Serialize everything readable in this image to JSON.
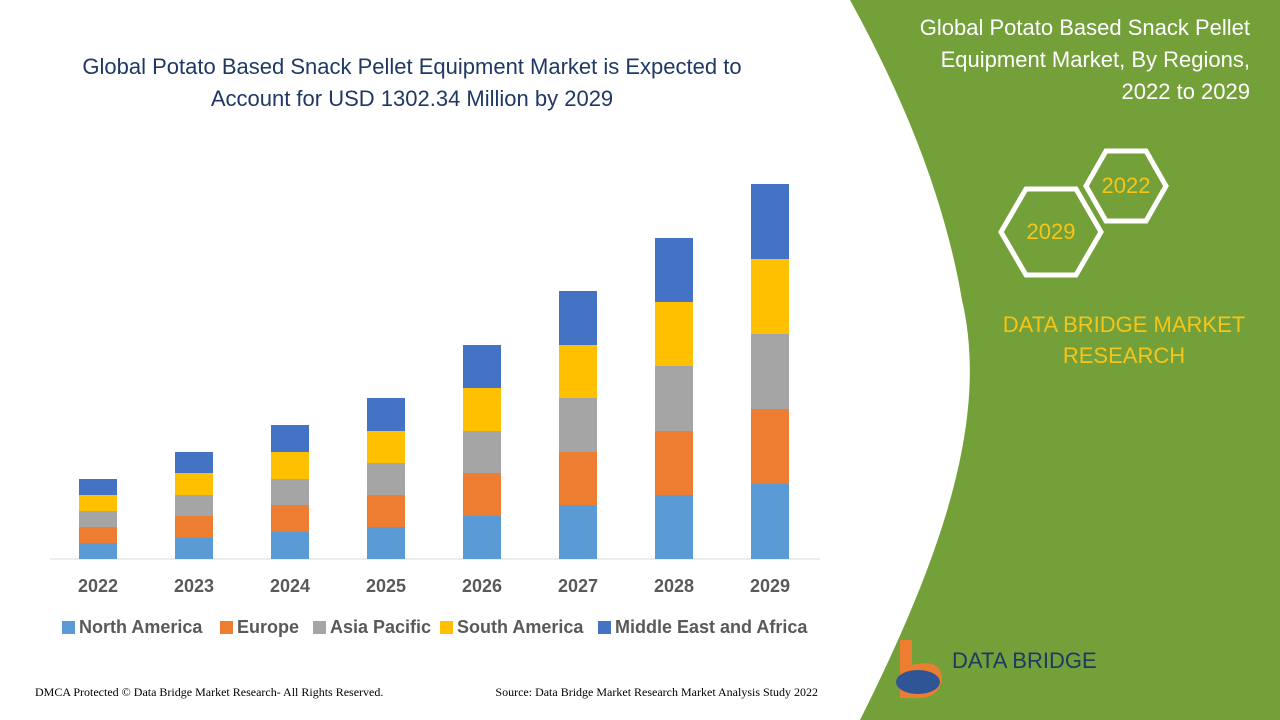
{
  "chart_data": {
    "type": "stacked-bar",
    "title": "Global Potato Based Snack Pellet Equipment Market is Expected to Account for USD 1302.34 Million by 2029",
    "categories": [
      "2022",
      "2023",
      "2024",
      "2025",
      "2026",
      "2027",
      "2028",
      "2029"
    ],
    "series": [
      {
        "name": "North America",
        "color": "#5b9bd5",
        "values": [
          16,
          21,
          27,
          32,
          43,
          54,
          64,
          75
        ]
      },
      {
        "name": "Europe",
        "color": "#ed7d31",
        "values": [
          16,
          22,
          27,
          32,
          43,
          53,
          64,
          75
        ]
      },
      {
        "name": "Asia Pacific",
        "color": "#a5a5a5",
        "values": [
          16,
          21,
          26,
          32,
          42,
          54,
          65,
          75
        ]
      },
      {
        "name": "South America",
        "color": "#ffc000",
        "values": [
          16,
          22,
          27,
          32,
          43,
          53,
          64,
          75
        ]
      },
      {
        "name": "Middle East and Africa",
        "color": "#4472c4",
        "values": [
          16,
          21,
          27,
          33,
          43,
          54,
          64,
          75
        ]
      }
    ]
  },
  "panel": {
    "title_lines": [
      "Global Potato Based Snack Pellet",
      "Equipment Market, By Regions,",
      "2022 to 2029"
    ],
    "hex_top": "2022",
    "hex_bottom": "2029",
    "brand_lines": [
      "DATA BRIDGE MARKET",
      "RESEARCH"
    ]
  },
  "logo": {
    "name": "DATA BRIDGE"
  },
  "footer": {
    "left": "DMCA Protected © Data Bridge Market Research- All Rights Reserved.",
    "right": "Source: Data Bridge Market Research Market Analysis Study 2022"
  }
}
